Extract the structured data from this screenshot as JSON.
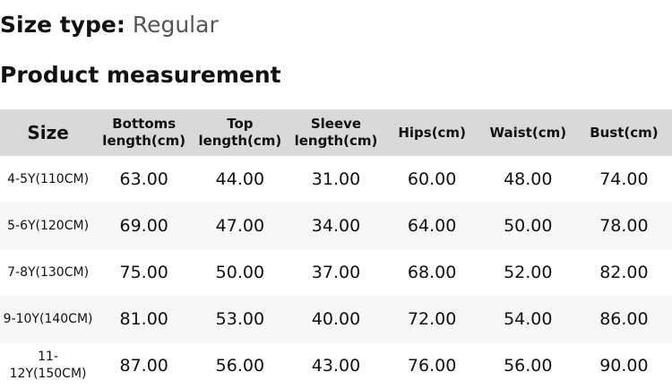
{
  "size_type": {
    "label": "Size type:",
    "value": "Regular"
  },
  "section_title": "Product measurement",
  "table": {
    "headers": [
      "Size",
      "Bottoms length(cm)",
      "Top length(cm)",
      "Sleeve length(cm)",
      "Hips(cm)",
      "Waist(cm)",
      "Bust(cm)"
    ],
    "rows": [
      [
        "4-5Y(110CM)",
        "63.00",
        "44.00",
        "31.00",
        "60.00",
        "48.00",
        "74.00"
      ],
      [
        "5-6Y(120CM)",
        "69.00",
        "47.00",
        "34.00",
        "64.00",
        "50.00",
        "78.00"
      ],
      [
        "7-8Y(130CM)",
        "75.00",
        "50.00",
        "37.00",
        "68.00",
        "52.00",
        "82.00"
      ],
      [
        "9-10Y(140CM)",
        "81.00",
        "53.00",
        "40.00",
        "72.00",
        "54.00",
        "86.00"
      ],
      [
        "11-12Y(150CM)",
        "87.00",
        "56.00",
        "43.00",
        "76.00",
        "56.00",
        "90.00"
      ]
    ]
  },
  "colors": {
    "header_bg": "#d9d9d9",
    "stripe_bg": "#f7f7f7"
  }
}
